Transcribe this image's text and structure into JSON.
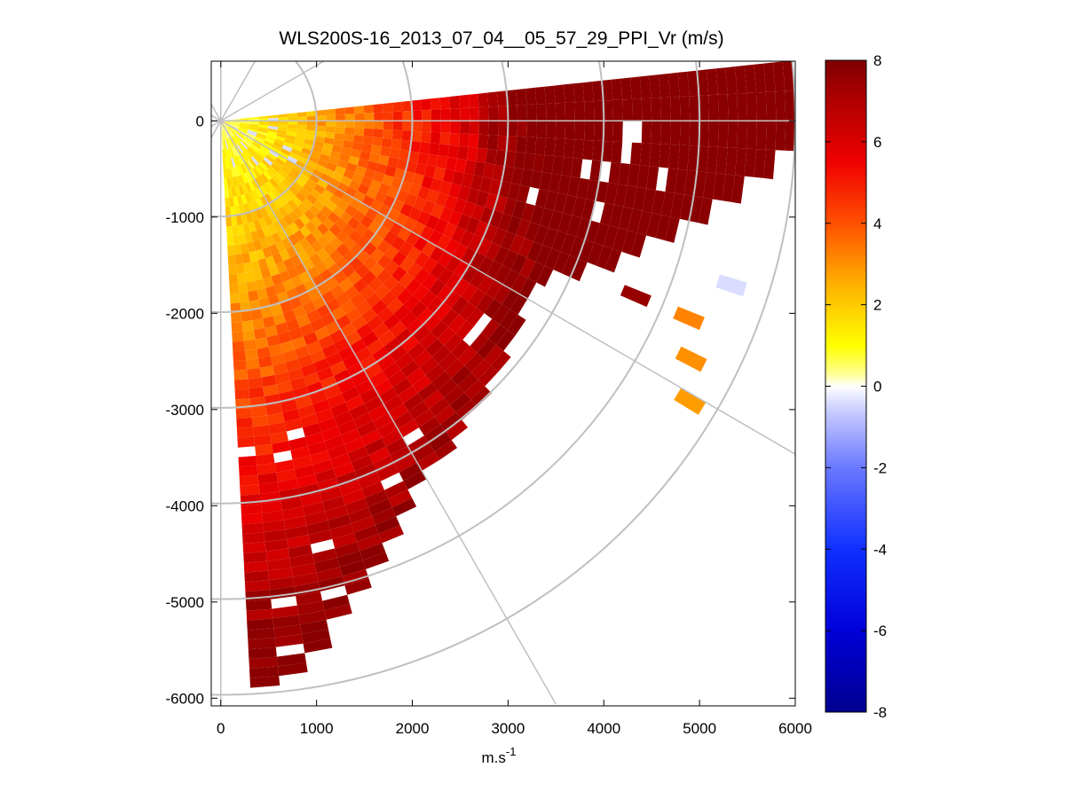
{
  "chart_data": {
    "type": "heatmap",
    "subtype": "lidar-ppi-sector",
    "title": "WLS200S-16_2013_07_04__05_57_29_PPI_Vr (m/s)",
    "xlabel": "m.s",
    "xlabel_superscript": "-1",
    "ylabel": "",
    "xlim": [
      -100,
      6000
    ],
    "ylim": [
      -6080,
      620
    ],
    "xticks": [
      0,
      1000,
      2000,
      3000,
      4000,
      5000,
      6000
    ],
    "yticks": [
      0,
      -1000,
      -2000,
      -3000,
      -4000,
      -5000,
      -6000
    ],
    "xtick_labels": [
      "0",
      "1000",
      "2000",
      "3000",
      "4000",
      "5000",
      "6000"
    ],
    "ytick_labels": [
      "0",
      "-1000",
      "-2000",
      "-3000",
      "-4000",
      "-5000",
      "-6000"
    ],
    "polar_grid": {
      "range_rings_m": [
        1000,
        2000,
        3000,
        4000,
        5000,
        6000
      ],
      "spokes_deg_from_east": [
        0,
        -30,
        -60,
        30,
        60,
        -90,
        90,
        120,
        150,
        180,
        -120,
        -150
      ],
      "color": "#c0c0c0"
    },
    "sector": {
      "start_azimuth_deg_from_east": 6,
      "end_azimuth_deg_from_east": -85,
      "max_range_m": 6000,
      "gate_spacing_m": 100,
      "beam_width_deg": 3
    },
    "field_summary": [
      {
        "region": "near lidar, < 1000 m",
        "vr_ms": [
          0.5,
          2.5
        ]
      },
      {
        "region": "southern beams, 1000-3000 m",
        "vr_ms": [
          2,
          4
        ]
      },
      {
        "region": "mid sector, 1000-4000 m",
        "vr_ms": [
          4.5,
          6
        ]
      },
      {
        "region": "eastern beams, 3000-6000 m",
        "vr_ms": [
          6.5,
          8
        ]
      },
      {
        "region": "far south-east edge",
        "vr_ms": [
          7,
          8
        ]
      },
      {
        "region": "isolated gates near 5400 m east",
        "vr_ms": [
          2.5,
          3.5
        ]
      },
      {
        "region": "few gates near origin and 5500 m",
        "vr_ms": [
          -0.5,
          0
        ]
      }
    ],
    "colorbar": {
      "label": "",
      "min": -8,
      "max": 8,
      "ticks": [
        8,
        6,
        4,
        2,
        0,
        -2,
        -4,
        -6,
        -8
      ],
      "tick_labels": [
        "8",
        "6",
        "4",
        "2",
        "0",
        "-2",
        "-4",
        "-6",
        "-8"
      ],
      "colormap": [
        [
          -8,
          "#00008f"
        ],
        [
          -6,
          "#0000d8"
        ],
        [
          -4,
          "#1030ff"
        ],
        [
          -2,
          "#6a78ff"
        ],
        [
          -0.6,
          "#c8ccff"
        ],
        [
          0,
          "#ffffff"
        ],
        [
          0.3,
          "#ffff90"
        ],
        [
          1,
          "#ffff00"
        ],
        [
          2.5,
          "#ffb000"
        ],
        [
          4,
          "#ff5000"
        ],
        [
          5.5,
          "#f00000"
        ],
        [
          7,
          "#b00000"
        ],
        [
          8,
          "#800000"
        ]
      ]
    },
    "grid": "polar",
    "legend": "colorbar right"
  }
}
